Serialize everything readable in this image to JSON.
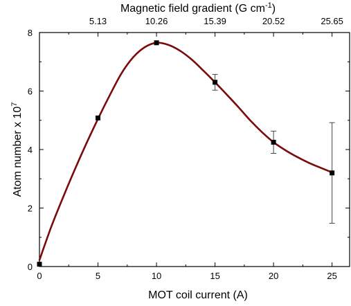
{
  "chart_data": {
    "type": "scatter",
    "xlabel": "MOT coil current (A)",
    "ylabel": "Atom number x 10",
    "ylabel_sup": "7",
    "x2label": "Magnetic field gradient (G cm",
    "x2label_sup": "-1",
    "x2label_close": ")",
    "xlim": [
      0,
      26.5
    ],
    "ylim": [
      0,
      8
    ],
    "xticks": [
      0,
      5,
      10,
      15,
      20,
      25
    ],
    "yticks": [
      0,
      2,
      4,
      6,
      8
    ],
    "x2ticks": [
      {
        "x": 5,
        "label": "5.13"
      },
      {
        "x": 10,
        "label": "10.26"
      },
      {
        "x": 15,
        "label": "15.39"
      },
      {
        "x": 20,
        "label": "20.52"
      },
      {
        "x": 25,
        "label": "25.65"
      }
    ],
    "series": [
      {
        "marker": "square",
        "points": [
          {
            "x": 0,
            "y": 0.08,
            "err": 0
          },
          {
            "x": 5,
            "y": 5.08,
            "err": 0
          },
          {
            "x": 10,
            "y": 7.65,
            "err": 0
          },
          {
            "x": 15,
            "y": 6.3,
            "err": 0.27
          },
          {
            "x": 20,
            "y": 4.25,
            "err": 0.38
          },
          {
            "x": 25,
            "y": 3.2,
            "err": 1.72
          }
        ]
      }
    ],
    "curve": [
      [
        0,
        0.22
      ],
      [
        1,
        1.35
      ],
      [
        2,
        2.35
      ],
      [
        3,
        3.3
      ],
      [
        4,
        4.2
      ],
      [
        5,
        5.05
      ],
      [
        6,
        5.85
      ],
      [
        7,
        6.6
      ],
      [
        8,
        7.15
      ],
      [
        9,
        7.5
      ],
      [
        10,
        7.65
      ],
      [
        11,
        7.58
      ],
      [
        12,
        7.38
      ],
      [
        13,
        7.08
      ],
      [
        14,
        6.7
      ],
      [
        15,
        6.3
      ],
      [
        16,
        5.88
      ],
      [
        17,
        5.45
      ],
      [
        18,
        5.0
      ],
      [
        19,
        4.6
      ],
      [
        20,
        4.25
      ],
      [
        21,
        3.98
      ],
      [
        22,
        3.75
      ],
      [
        23,
        3.55
      ],
      [
        24,
        3.38
      ],
      [
        25,
        3.22
      ]
    ],
    "colors": {
      "curve": "#7b0a0a",
      "marker": "#000000",
      "axis": "#000000"
    }
  }
}
